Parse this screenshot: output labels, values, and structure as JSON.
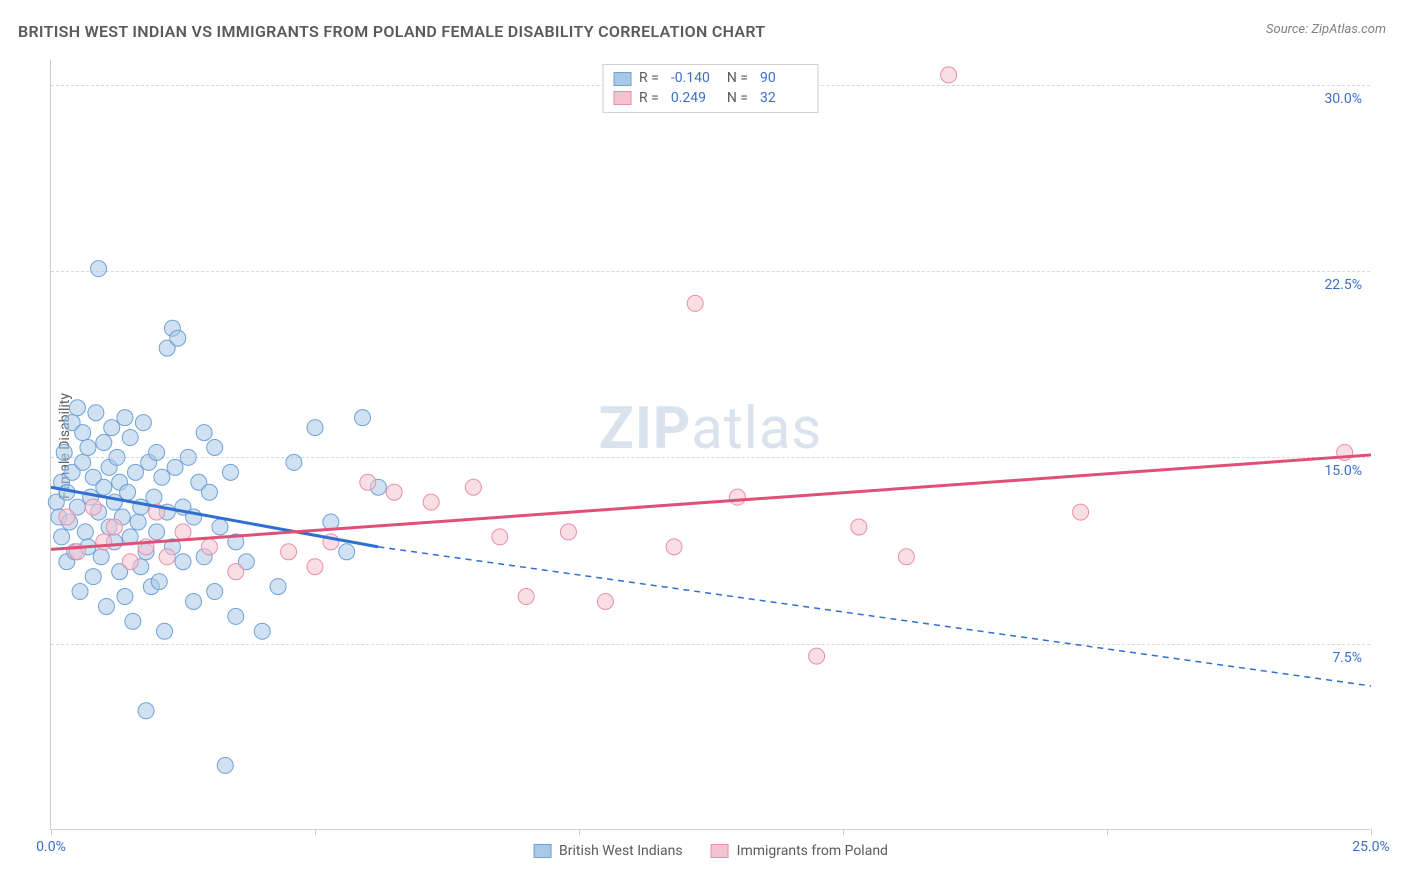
{
  "title": "BRITISH WEST INDIAN VS IMMIGRANTS FROM POLAND FEMALE DISABILITY CORRELATION CHART",
  "source_label": "Source:",
  "source_value": "ZipAtlas.com",
  "ylabel": "Female Disability",
  "watermark_prefix": "ZIP",
  "watermark_suffix": "atlas",
  "chart": {
    "type": "scatter",
    "xlim": [
      0,
      25
    ],
    "ylim": [
      0,
      31
    ],
    "ytick_values": [
      7.5,
      15.0,
      22.5,
      30.0
    ],
    "ytick_labels": [
      "7.5%",
      "15.0%",
      "22.5%",
      "30.0%"
    ],
    "xtick_values": [
      0,
      5,
      10,
      15,
      20,
      25
    ],
    "xtick_labels": [
      "0.0%",
      "",
      "",
      "",
      "",
      "25.0%"
    ],
    "grid_color": "#d8d8d8",
    "axis_color": "#cfcfcf",
    "background_color": "#ffffff",
    "tick_label_color": "#3b6fc9",
    "series": [
      {
        "name": "British West Indians",
        "color_fill": "#a9c8e8",
        "color_stroke": "#6fa2d8",
        "line_color": "#2f6fd0",
        "marker_radius": 8,
        "fill_opacity": 0.55,
        "R": "-0.140",
        "N": "90",
        "trend": {
          "x1": 0,
          "y1": 13.8,
          "x2": 6.2,
          "y2": 11.4,
          "extend_x2": 25,
          "extend_y2": 5.8
        },
        "points": [
          [
            0.1,
            13.2
          ],
          [
            0.15,
            12.6
          ],
          [
            0.2,
            14.0
          ],
          [
            0.2,
            11.8
          ],
          [
            0.25,
            15.2
          ],
          [
            0.3,
            13.6
          ],
          [
            0.3,
            10.8
          ],
          [
            0.35,
            12.4
          ],
          [
            0.4,
            14.4
          ],
          [
            0.4,
            16.4
          ],
          [
            0.45,
            11.2
          ],
          [
            0.5,
            13.0
          ],
          [
            0.5,
            17.0
          ],
          [
            0.55,
            9.6
          ],
          [
            0.6,
            14.8
          ],
          [
            0.6,
            16.0
          ],
          [
            0.65,
            12.0
          ],
          [
            0.7,
            15.4
          ],
          [
            0.7,
            11.4
          ],
          [
            0.75,
            13.4
          ],
          [
            0.8,
            10.2
          ],
          [
            0.8,
            14.2
          ],
          [
            0.85,
            16.8
          ],
          [
            0.9,
            12.8
          ],
          [
            0.9,
            22.6
          ],
          [
            0.95,
            11.0
          ],
          [
            1.0,
            15.6
          ],
          [
            1.0,
            13.8
          ],
          [
            1.05,
            9.0
          ],
          [
            1.1,
            14.6
          ],
          [
            1.1,
            12.2
          ],
          [
            1.15,
            16.2
          ],
          [
            1.2,
            11.6
          ],
          [
            1.2,
            13.2
          ],
          [
            1.25,
            15.0
          ],
          [
            1.3,
            10.4
          ],
          [
            1.3,
            14.0
          ],
          [
            1.35,
            12.6
          ],
          [
            1.4,
            16.6
          ],
          [
            1.4,
            9.4
          ],
          [
            1.45,
            13.6
          ],
          [
            1.5,
            11.8
          ],
          [
            1.5,
            15.8
          ],
          [
            1.55,
            8.4
          ],
          [
            1.6,
            14.4
          ],
          [
            1.65,
            12.4
          ],
          [
            1.7,
            10.6
          ],
          [
            1.7,
            13.0
          ],
          [
            1.75,
            16.4
          ],
          [
            1.8,
            11.2
          ],
          [
            1.8,
            4.8
          ],
          [
            1.85,
            14.8
          ],
          [
            1.9,
            9.8
          ],
          [
            1.95,
            13.4
          ],
          [
            2.0,
            12.0
          ],
          [
            2.0,
            15.2
          ],
          [
            2.05,
            10.0
          ],
          [
            2.1,
            14.2
          ],
          [
            2.15,
            8.0
          ],
          [
            2.2,
            19.4
          ],
          [
            2.2,
            12.8
          ],
          [
            2.3,
            11.4
          ],
          [
            2.3,
            20.2
          ],
          [
            2.35,
            14.6
          ],
          [
            2.4,
            19.8
          ],
          [
            2.5,
            13.0
          ],
          [
            2.5,
            10.8
          ],
          [
            2.6,
            15.0
          ],
          [
            2.7,
            9.2
          ],
          [
            2.7,
            12.6
          ],
          [
            2.8,
            14.0
          ],
          [
            2.9,
            11.0
          ],
          [
            2.9,
            16.0
          ],
          [
            3.0,
            13.6
          ],
          [
            3.1,
            9.6
          ],
          [
            3.1,
            15.4
          ],
          [
            3.2,
            12.2
          ],
          [
            3.3,
            2.6
          ],
          [
            3.4,
            14.4
          ],
          [
            3.5,
            8.6
          ],
          [
            3.5,
            11.6
          ],
          [
            3.7,
            10.8
          ],
          [
            4.0,
            8.0
          ],
          [
            4.3,
            9.8
          ],
          [
            4.6,
            14.8
          ],
          [
            5.0,
            16.2
          ],
          [
            5.3,
            12.4
          ],
          [
            5.6,
            11.2
          ],
          [
            5.9,
            16.6
          ],
          [
            6.2,
            13.8
          ]
        ]
      },
      {
        "name": "Immigrants from Poland",
        "color_fill": "#f5c3cf",
        "color_stroke": "#e98fa5",
        "line_color": "#e04f78",
        "marker_radius": 8,
        "fill_opacity": 0.55,
        "R": "0.249",
        "N": "32",
        "trend": {
          "x1": 0,
          "y1": 11.3,
          "x2": 25,
          "y2": 15.1
        },
        "points": [
          [
            0.3,
            12.6
          ],
          [
            0.5,
            11.2
          ],
          [
            0.8,
            13.0
          ],
          [
            1.0,
            11.6
          ],
          [
            1.2,
            12.2
          ],
          [
            1.5,
            10.8
          ],
          [
            1.8,
            11.4
          ],
          [
            2.0,
            12.8
          ],
          [
            2.2,
            11.0
          ],
          [
            2.5,
            12.0
          ],
          [
            3.0,
            11.4
          ],
          [
            3.5,
            10.4
          ],
          [
            4.5,
            11.2
          ],
          [
            5.0,
            10.6
          ],
          [
            5.3,
            11.6
          ],
          [
            6.0,
            14.0
          ],
          [
            6.5,
            13.6
          ],
          [
            7.2,
            13.2
          ],
          [
            8.0,
            13.8
          ],
          [
            8.5,
            11.8
          ],
          [
            9.0,
            9.4
          ],
          [
            9.8,
            12.0
          ],
          [
            10.5,
            9.2
          ],
          [
            11.8,
            11.4
          ],
          [
            12.2,
            21.2
          ],
          [
            13.0,
            13.4
          ],
          [
            14.5,
            7.0
          ],
          [
            15.3,
            12.2
          ],
          [
            16.2,
            11.0
          ],
          [
            17.0,
            30.4
          ],
          [
            19.5,
            12.8
          ],
          [
            24.5,
            15.2
          ]
        ]
      }
    ],
    "legend_top": {
      "r_label": "R =",
      "n_label": "N ="
    },
    "legend_bottom": [
      {
        "label": "British West Indians"
      },
      {
        "label": "Immigrants from Poland"
      }
    ]
  }
}
